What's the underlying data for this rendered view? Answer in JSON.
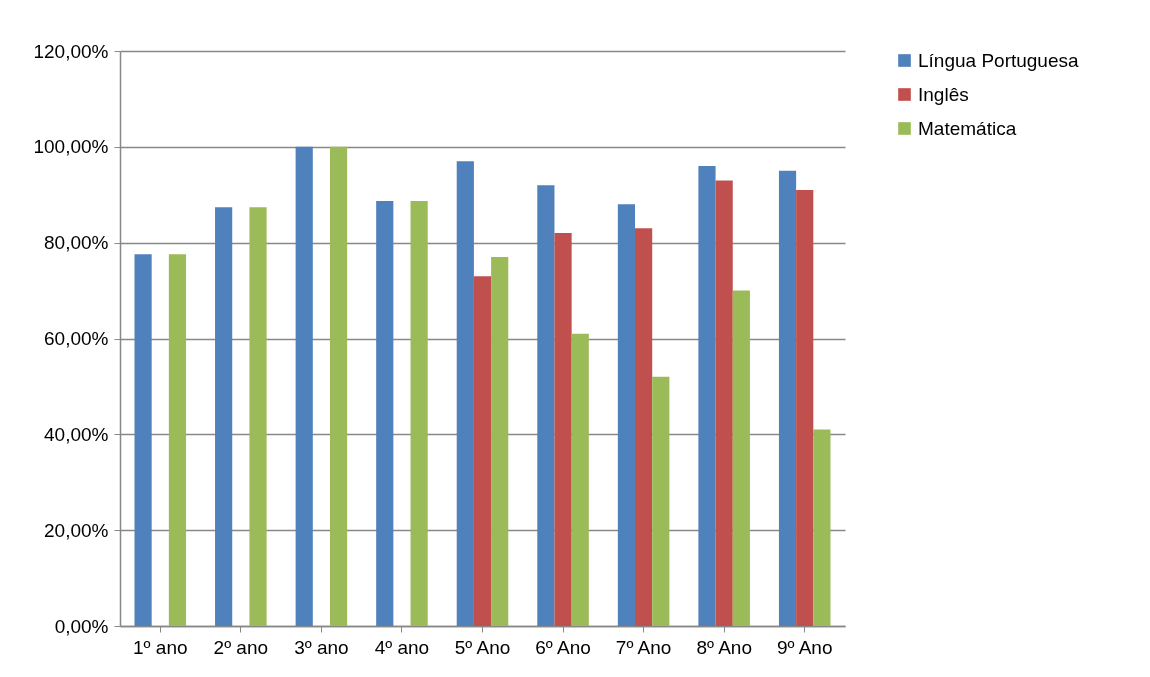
{
  "chart_data": {
    "type": "bar",
    "categories": [
      "1º ano",
      "2º ano",
      "3º ano",
      "4º ano",
      "5º Ano",
      "6º Ano",
      "7º Ano",
      "8º Ano",
      "9º Ano"
    ],
    "series": [
      {
        "name": "Língua Portuguesa",
        "color": "#4f81bd",
        "values": [
          77.6,
          87.4,
          100,
          88.7,
          97,
          92,
          88,
          96,
          95
        ]
      },
      {
        "name": "Inglês",
        "color": "#c0504d",
        "values": [
          null,
          null,
          null,
          null,
          73,
          82,
          83,
          93,
          91
        ]
      },
      {
        "name": "Matemática",
        "color": "#9bbb59",
        "values": [
          77.6,
          87.4,
          100,
          88.7,
          77,
          61,
          52,
          70,
          41
        ]
      }
    ],
    "ylim": [
      0,
      120
    ],
    "yticks": [
      {
        "value": 0,
        "label": "0,00%"
      },
      {
        "value": 20,
        "label": "20,00%"
      },
      {
        "value": 40,
        "label": "40,00%"
      },
      {
        "value": 60,
        "label": "60,00%"
      },
      {
        "value": 80,
        "label": "80,00%"
      },
      {
        "value": 100,
        "label": "100,00%"
      },
      {
        "value": 120,
        "label": "120,00%"
      }
    ],
    "grid": "y",
    "legend": "right"
  }
}
